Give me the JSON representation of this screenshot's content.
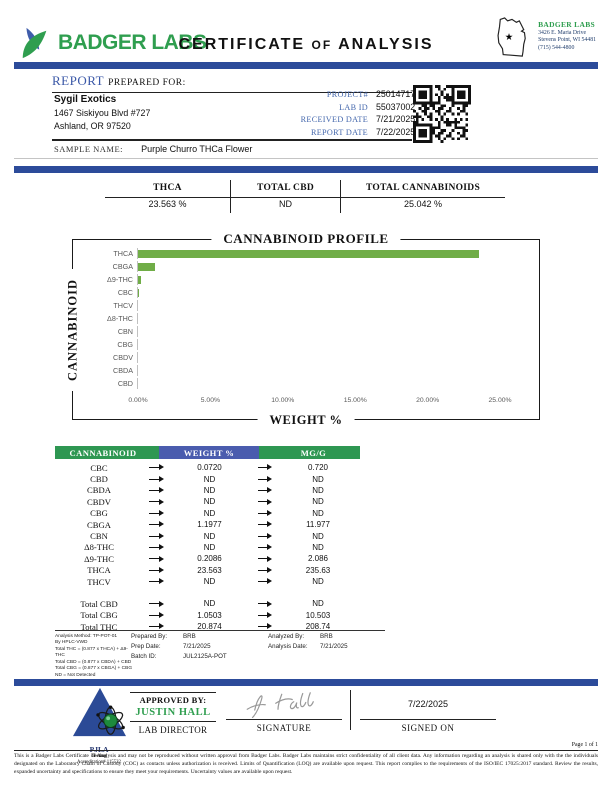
{
  "brand": {
    "logo_text": "BADGER LABS",
    "seal_name": "BADGER LABS",
    "seal_address": [
      "3426 E. Maria Drive",
      "Stevens Point, WI 54481",
      "(715) 544-4800"
    ]
  },
  "title": {
    "word1": "CERTIFICATE",
    "word2": "OF",
    "word3": "ANALYSIS"
  },
  "report": {
    "heading_primary": "REPORT",
    "heading_secondary": "PREPARED FOR:",
    "client": {
      "name": "Sygil Exotics",
      "address_line1": "1467 Siskiyou Blvd #727",
      "address_line2": "Ashland, OR 97520"
    },
    "meta": [
      {
        "label": "PROJECT#",
        "value": "25014717"
      },
      {
        "label": "LAB ID",
        "value": "55037002"
      },
      {
        "label": "RECEIVED DATE",
        "value": "7/21/2025"
      },
      {
        "label": "REPORT DATE",
        "value": "7/22/2025"
      }
    ],
    "sample_label": "SAMPLE NAME:",
    "sample_name": "Purple Churro THCa Flower"
  },
  "summary": [
    {
      "label": "THCA",
      "value": "23.563 %"
    },
    {
      "label": "TOTAL CBD",
      "value": "ND"
    },
    {
      "label": "TOTAL CANNABINOIDS",
      "value": "25.042 %"
    }
  ],
  "chart_data": {
    "type": "bar",
    "orientation": "horizontal",
    "title": "CANNABINOID PROFILE",
    "xlabel": "WEIGHT %",
    "ylabel": "CANNABINOID",
    "categories": [
      "THCA",
      "CBGA",
      "Δ9-THC",
      "CBC",
      "THCV",
      "Δ8-THC",
      "CBN",
      "CBG",
      "CBDV",
      "CBDA",
      "CBD"
    ],
    "values": [
      23.563,
      1.1977,
      0.2086,
      0.072,
      0,
      0,
      0,
      0,
      0,
      0,
      0
    ],
    "xticks": [
      0,
      5,
      10,
      15,
      20,
      25
    ],
    "xtick_labels": [
      "0.00%",
      "5.00%",
      "10.00%",
      "15.00%",
      "20.00%",
      "25.00%"
    ],
    "xlim": [
      0,
      27
    ],
    "bar_color": "#70ad47",
    "grid": false,
    "legend": false
  },
  "results_table": {
    "headers": [
      "CANNABINOID",
      "WEIGHT %",
      "MG/G"
    ],
    "rows": [
      {
        "name": "CBC",
        "weight": "0.0720",
        "mgg": "0.720"
      },
      {
        "name": "CBD",
        "weight": "ND",
        "mgg": "ND"
      },
      {
        "name": "CBDA",
        "weight": "ND",
        "mgg": "ND"
      },
      {
        "name": "CBDV",
        "weight": "ND",
        "mgg": "ND"
      },
      {
        "name": "CBG",
        "weight": "ND",
        "mgg": "ND"
      },
      {
        "name": "CBGA",
        "weight": "1.1977",
        "mgg": "11.977"
      },
      {
        "name": "CBN",
        "weight": "ND",
        "mgg": "ND"
      },
      {
        "name": "Δ8-THC",
        "weight": "ND",
        "mgg": "ND"
      },
      {
        "name": "Δ9-THC",
        "weight": "0.2086",
        "mgg": "2.086"
      },
      {
        "name": "THCA",
        "weight": "23.563",
        "mgg": "235.63"
      },
      {
        "name": "THCV",
        "weight": "ND",
        "mgg": "ND"
      }
    ],
    "totals": [
      {
        "name": "Total CBD",
        "weight": "ND",
        "mgg": "ND"
      },
      {
        "name": "Total CBG",
        "weight": "1.0503",
        "mgg": "10.503"
      },
      {
        "name": "Total THC",
        "weight": "20.874",
        "mgg": "208.74"
      }
    ]
  },
  "methodology": [
    "Analysis Method: TP-POT-01",
    "By HPLC-VWD",
    "Total THC = (0.877 x THCA) + Δ9-THC",
    "Total CBD = (0.877 x CBDA) + CBD",
    "Total CBG = (0.877 x CBGA) + CBG",
    "ND = Not Detected"
  ],
  "prep": {
    "prepared_by_label": "Prepared By:",
    "prepared_by": "BRB",
    "prep_date_label": "Prep Date:",
    "prep_date": "7/21/2025",
    "batch_id_label": "Batch ID:",
    "batch_id": "JUL2125A-POT",
    "analyzed_by_label": "Analyzed By:",
    "analyzed_by": "BRB",
    "analysis_date_label": "Analysis Date:",
    "analysis_date": "7/21/2025"
  },
  "accreditation": {
    "org": "PJLA",
    "division": "Testing",
    "number": "Accreditation# 115522"
  },
  "approval": {
    "approved_by_label": "APPROVED BY:",
    "approver_name": "JUSTIN HALL",
    "approver_title": "LAB DIRECTOR",
    "signature_label": "SIGNATURE",
    "signed_on_label": "SIGNED ON",
    "signed_on_date": "7/22/2025"
  },
  "footer": {
    "page_label": "Page 1 of 1",
    "disclaimer": "This is a Badger Labs Certificate of Analysis and may not be reproduced without written approval from Badger Labs. Badger Labs maintains strict confidentiality of all client data. Any information regarding an analysis is shared only with the the individuals designated on the Laboratory Chain of Custody (COC) as contacts unless authorization is received. Limits of Quantification (LOQ) are available upon request. This report complies to the requirements of the ISO/IEC 17025:2017 standard. Review the results, expanded uncertainty and specifications to ensure they meet your requirements. Uncertainty values are available upon request."
  },
  "colors": {
    "brand_green": "#2f9e4f",
    "table_header_green": "#2e9752",
    "navy_bar": "#2c4b9a",
    "meta_label_blue": "#4568ad",
    "weight_header_blue": "#4a5cae",
    "bar_green": "#70ad47",
    "signature_gray": "#999999"
  }
}
